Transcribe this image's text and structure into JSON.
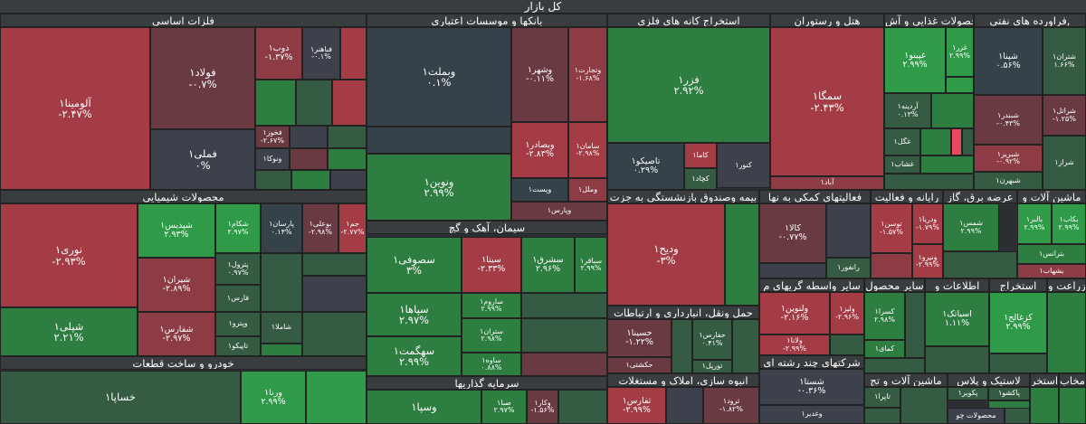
{
  "title": "کل بازار",
  "sectors": [
    {
      "id": "metals",
      "label": "فلزات اساسی"
    },
    {
      "id": "banks",
      "label": "بانکها و موسسات اعتباری"
    },
    {
      "id": "mining",
      "label": "استخراج کانه های فلزی"
    },
    {
      "id": "hotel",
      "label": "هتل و رستوران"
    },
    {
      "id": "food",
      "label": "محصولات غذایی و آش"
    },
    {
      "id": "oil",
      "label": "فراورده های نفتی,"
    },
    {
      "id": "chem",
      "label": "محصولات شیمیایی"
    },
    {
      "id": "cement",
      "label": "سیمان، آهک و گچ"
    },
    {
      "id": "auto",
      "label": "خودرو و ساخت قطعات"
    },
    {
      "id": "invest",
      "label": "سرمایه گذاریها"
    },
    {
      "id": "insurance",
      "label": "بیمه وصندوق بازنشستگی به جزت"
    },
    {
      "id": "support",
      "label": "فعالیتهای کمکی به نها"
    },
    {
      "id": "utility",
      "label": "رایانه و فعالیت"
    },
    {
      "id": "power",
      "label": "عرضه برق، گاز"
    },
    {
      "id": "machinery",
      "label": "ماشین آلات و"
    },
    {
      "id": "multi",
      "label": "سایر واسطه گریهای م"
    },
    {
      "id": "otherprod",
      "label": "سایر محصول"
    },
    {
      "id": "info",
      "label": "اطلاعات و"
    },
    {
      "id": "extract",
      "label": "استخراج"
    },
    {
      "id": "agri",
      "label": "زراعت و"
    },
    {
      "id": "transport",
      "label": "حمل ونقل، انبارداری و ارتباطات"
    },
    {
      "id": "diverse",
      "label": "شرکتهای چند رشته ای"
    },
    {
      "id": "machinery2",
      "label": "ماشین آلات و تج"
    },
    {
      "id": "build",
      "label": "انبوه سازی، املاک و مستغلات"
    },
    {
      "id": "plastic",
      "label": "لاستیک و پلاس"
    },
    {
      "id": "extract2",
      "label": "استخر"
    },
    {
      "id": "telecom",
      "label": "مخاب"
    }
  ],
  "tiles": [
    {
      "name": "آلومینا۱",
      "change": "-۲.۴۷%"
    },
    {
      "name": "فولاد۱",
      "change": "-۰.۷%"
    },
    {
      "name": "ذوب۱",
      "change": "-۱.۳۷%"
    },
    {
      "name": "فباهنر۱",
      "change": "-۰.۱%"
    },
    {
      "name": "فملی۱",
      "change": "۰%"
    },
    {
      "name": "فخوز۱",
      "change": "-۲.۶۷%"
    },
    {
      "name": "ونوکا۱",
      "change": ""
    },
    {
      "name": "وبملت۱",
      "change": "۰.۱%"
    },
    {
      "name": "وشهر۱",
      "change": "-۰.۱۱%"
    },
    {
      "name": "وتجارت۱",
      "change": "-۱.۶۸%"
    },
    {
      "name": "وبصادر۱",
      "change": "-۲.۸۳%"
    },
    {
      "name": "سامان۱",
      "change": "-۲.۹۸%"
    },
    {
      "name": "ونوین۱",
      "change": "۲.۹۹%"
    },
    {
      "name": "وپست۱",
      "change": ""
    },
    {
      "name": "وملل۱",
      "change": ""
    },
    {
      "name": "وپارس۱",
      "change": ""
    },
    {
      "name": "فزر۱",
      "change": "۲.۹۲%"
    },
    {
      "name": "کاما۱",
      "change": ""
    },
    {
      "name": "کنور۱",
      "change": ""
    },
    {
      "name": "تاصیکو۱",
      "change": "۰.۲۹%"
    },
    {
      "name": "کچاد۱",
      "change": ""
    },
    {
      "name": "سمگا۱",
      "change": "-۲.۴۳%"
    },
    {
      "name": "آباد۱",
      "change": ""
    },
    {
      "name": "غپینو۱",
      "change": "۲.۹۹%"
    },
    {
      "name": "غزر۱",
      "change": "۲.۹۹%"
    },
    {
      "name": "آردینه۱",
      "change": "۰.۱۳%"
    },
    {
      "name": "غگل۱",
      "change": ""
    },
    {
      "name": "غشاب۱",
      "change": ""
    },
    {
      "name": "شپنا۱",
      "change": "۰.۵۶%"
    },
    {
      "name": "شتران۱",
      "change": "۱.۶۶%"
    },
    {
      "name": "شبندر۱",
      "change": "-۰.۴۳%"
    },
    {
      "name": "شراتل۱",
      "change": "-۱.۲۵%"
    },
    {
      "name": "شبریز۱",
      "change": "-۰.۹۲%"
    },
    {
      "name": "شبهرن۱",
      "change": ""
    },
    {
      "name": "شراز۱",
      "change": ""
    },
    {
      "name": "نوری۱",
      "change": "-۲.۹۳%"
    },
    {
      "name": "شپدیس۱",
      "change": "۲.۹۳%"
    },
    {
      "name": "شکام۱",
      "change": "۲.۹۷%"
    },
    {
      "name": "پارسان۱",
      "change": "۰.۱۴%"
    },
    {
      "name": "بوعلی۱",
      "change": "-۲.۹۸%"
    },
    {
      "name": "جم۱",
      "change": "-۲.۷۷%"
    },
    {
      "name": "شیران۱",
      "change": "-۲.۸۹%"
    },
    {
      "name": "پترول۱",
      "change": "۰.۹۷%"
    },
    {
      "name": "فارس۱",
      "change": ""
    },
    {
      "name": "شپلی۱",
      "change": "۲.۲۱%"
    },
    {
      "name": "شفارس۱",
      "change": "-۲.۹۷%"
    },
    {
      "name": "وپترو۱",
      "change": ""
    },
    {
      "name": "شاملا۱",
      "change": ""
    },
    {
      "name": "تاپیکو۱",
      "change": ""
    },
    {
      "name": "سصوفی۱",
      "change": "۳%"
    },
    {
      "name": "سیتا۱",
      "change": "-۲.۳۳%"
    },
    {
      "name": "سشرق۱",
      "change": "۲.۹۶%"
    },
    {
      "name": "سباقر۱",
      "change": "۲.۹۹%"
    },
    {
      "name": "سپاها۱",
      "change": "۲.۹۷%"
    },
    {
      "name": "ساروم۱",
      "change": "۲.۹۹%"
    },
    {
      "name": "ستران۱",
      "change": "۲.۹۸%"
    },
    {
      "name": "سهگمت۱",
      "change": "۲.۹۹%"
    },
    {
      "name": "ساوه۱",
      "change": "۰.۸۸%"
    },
    {
      "name": "خساپا۱",
      "change": ""
    },
    {
      "name": "ورنا۱",
      "change": "۲.۹۹%"
    },
    {
      "name": "وسپا۱",
      "change": ""
    },
    {
      "name": "صبا۱",
      "change": "۲.۹۷%"
    },
    {
      "name": "وکار۱",
      "change": "-۱.۵۶%"
    },
    {
      "name": "ودیح۱",
      "change": "-۳%"
    },
    {
      "name": "کالا۱",
      "change": "-۰.۷۷%"
    },
    {
      "name": "رانفور۱",
      "change": ""
    },
    {
      "name": "توسن۱",
      "change": "-۱.۵۷%"
    },
    {
      "name": "ودریا۱",
      "change": "-۱.۷۹%"
    },
    {
      "name": "ونیرو۱",
      "change": "-۲.۹۹%"
    },
    {
      "name": "شمس۱",
      "change": "۲.۹۹%"
    },
    {
      "name": "بالبر۱",
      "change": "۲.۹۹%"
    },
    {
      "name": "بکاب۱",
      "change": "۲.۹۹%"
    },
    {
      "name": "بترانس۱",
      "change": ""
    },
    {
      "name": "بشهاب۱",
      "change": ""
    },
    {
      "name": "ولنوین۱",
      "change": "-۲.۱۶%"
    },
    {
      "name": "ولیز۱",
      "change": "-۲.۹۶%"
    },
    {
      "name": "ولانا۱",
      "change": "-۲.۹۹%"
    },
    {
      "name": "کسرا۱",
      "change": "۲.۹۸%"
    },
    {
      "name": "کمای۱",
      "change": ""
    },
    {
      "name": "اسیاتک۱",
      "change": "۱.۱۱%"
    },
    {
      "name": "کزغالج۱",
      "change": "۲.۹۹%"
    },
    {
      "name": "حسینا۱",
      "change": "-۱.۲۲%"
    },
    {
      "name": "حفارس۱",
      "change": "۰.۴۱%"
    },
    {
      "name": "حکشتی۱",
      "change": ""
    },
    {
      "name": "تورپل۱",
      "change": ""
    },
    {
      "name": "شستا۱",
      "change": "-۰.۳۶%"
    },
    {
      "name": "وغدیر۱",
      "change": ""
    },
    {
      "name": "ثفارس۱",
      "change": "-۲.۹۹%"
    },
    {
      "name": "ثرود۱",
      "change": "-۱.۸۲%"
    },
    {
      "name": "تاپرا۱",
      "change": ""
    },
    {
      "name": "پکویر۱",
      "change": ""
    },
    {
      "name": "پاکشو۱",
      "change": ""
    },
    {
      "name": "پاپبر۱",
      "change": ""
    },
    {
      "name": "محصولات چو",
      "change": ""
    }
  ]
}
